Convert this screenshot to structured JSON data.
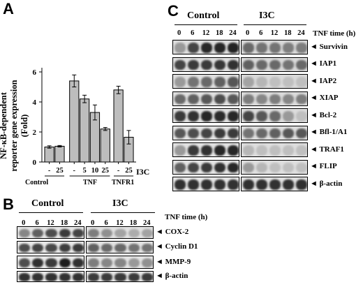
{
  "panels": {
    "A": {
      "letter": "A",
      "ylabel": "NF-κB-dependent reporter gene expression (Fold)",
      "ylabel_lines": [
        "NF-κB-dependent",
        "reporter gene expression",
        "(Fold)"
      ],
      "i3c_label": "I3C",
      "x_doses": [
        "-",
        "25",
        "-",
        "5",
        "10",
        "25",
        "-",
        "25"
      ],
      "groups": [
        "Control",
        "TNF",
        "TNFR1"
      ],
      "yticks": [
        "0",
        "2",
        "4",
        "6"
      ]
    },
    "B": {
      "letter": "B",
      "groups": [
        "Control",
        "I3C"
      ],
      "time_label": "TNF time (h)",
      "times": [
        "0",
        "6",
        "12",
        "18",
        "24"
      ],
      "rows": [
        "COX-2",
        "Cyclin D1",
        "MMP-9",
        "β-actin"
      ]
    },
    "C": {
      "letter": "C",
      "groups": [
        "Control",
        "I3C"
      ],
      "time_label": "TNF time (h)",
      "times": [
        "0",
        "6",
        "12",
        "18",
        "24"
      ],
      "rows": [
        "Survivin",
        "IAP1",
        "IAP2",
        "XIAP",
        "Bcl-2",
        "Bfl-1/A1",
        "TRAF1",
        "FLIP",
        "β-actin"
      ]
    }
  },
  "chart_data": {
    "type": "bar",
    "title": "",
    "xlabel": "",
    "ylabel": "NF-κB-dependent reporter gene expression (Fold)",
    "ylim": [
      0,
      6
    ],
    "categories": [
      "Control -",
      "Control 25",
      "TNF -",
      "TNF 5",
      "TNF 10",
      "TNF 25",
      "TNFR1 -",
      "TNFR1 25"
    ],
    "values": [
      1.0,
      1.05,
      5.4,
      4.2,
      3.3,
      2.2,
      4.8,
      1.65
    ],
    "errors": [
      0.08,
      0.05,
      0.4,
      0.25,
      0.5,
      0.1,
      0.25,
      0.45
    ],
    "colors": {
      "bar": "#bdbdbd",
      "edge": "#000000"
    }
  }
}
